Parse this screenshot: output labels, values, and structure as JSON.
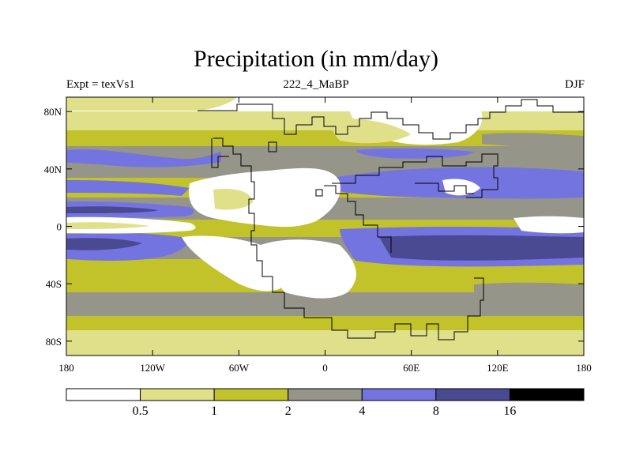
{
  "title": "Precipitation (in mm/day)",
  "subtitle_left": "Expt = texVs1",
  "subtitle_center": "222_4_MaBP",
  "subtitle_right": "DJF",
  "axes": {
    "y_ticks": [
      {
        "value": 80,
        "label": "80N"
      },
      {
        "value": 40,
        "label": "40N"
      },
      {
        "value": 0,
        "label": "0"
      },
      {
        "value": -40,
        "label": "40S"
      },
      {
        "value": -80,
        "label": "80S"
      }
    ],
    "x_ticks": [
      {
        "value": -180,
        "label": "180"
      },
      {
        "value": -120,
        "label": "120W"
      },
      {
        "value": -60,
        "label": "60W"
      },
      {
        "value": 0,
        "label": "0"
      },
      {
        "value": 60,
        "label": "60E"
      },
      {
        "value": 120,
        "label": "120E"
      },
      {
        "value": 180,
        "label": "180"
      }
    ],
    "lon_range": [
      -180,
      180
    ],
    "lat_range": [
      -90,
      90
    ]
  },
  "colorbar": {
    "colors": [
      "#ffffff",
      "#e0e08a",
      "#c2c22a",
      "#95958a",
      "#7474e0",
      "#4a4a92",
      "#000000"
    ],
    "labels": [
      "0.5",
      "1",
      "2",
      "4",
      "8",
      "16"
    ]
  },
  "chart_data": {
    "type": "heatmap",
    "title": "Precipitation (in mm/day)",
    "variable": "Precipitation",
    "units": "mm/day",
    "season": "DJF",
    "experiment": "texVs1",
    "period": "222_4_MaBP",
    "levels": [
      0.5,
      1,
      2,
      4,
      8,
      16
    ]
  }
}
